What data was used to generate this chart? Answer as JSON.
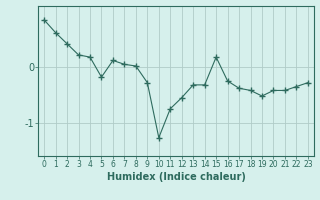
{
  "x": [
    0,
    1,
    2,
    3,
    4,
    5,
    6,
    7,
    8,
    9,
    10,
    11,
    12,
    13,
    14,
    15,
    16,
    17,
    18,
    19,
    20,
    21,
    22,
    23
  ],
  "y": [
    0.85,
    0.62,
    0.42,
    0.22,
    0.18,
    -0.18,
    0.12,
    0.05,
    0.02,
    -0.28,
    -1.27,
    -0.75,
    -0.55,
    -0.32,
    -0.32,
    0.18,
    -0.25,
    -0.38,
    -0.42,
    -0.52,
    -0.42,
    -0.42,
    -0.35,
    -0.28
  ],
  "line_color": "#2e6b5e",
  "marker": "+",
  "marker_color": "#2e6b5e",
  "bg_color": "#d6f0ec",
  "grid_color": "#b0ccc8",
  "axis_color": "#2e6b5e",
  "xlabel": "Humidex (Indice chaleur)",
  "yticks": [
    0,
    -1
  ],
  "xlim": [
    -0.5,
    23.5
  ],
  "ylim": [
    -1.6,
    1.1
  ],
  "xlabel_fontsize": 7,
  "tick_fontsize": 5.5,
  "ytick_fontsize": 7,
  "label_color": "#2e6b5e"
}
